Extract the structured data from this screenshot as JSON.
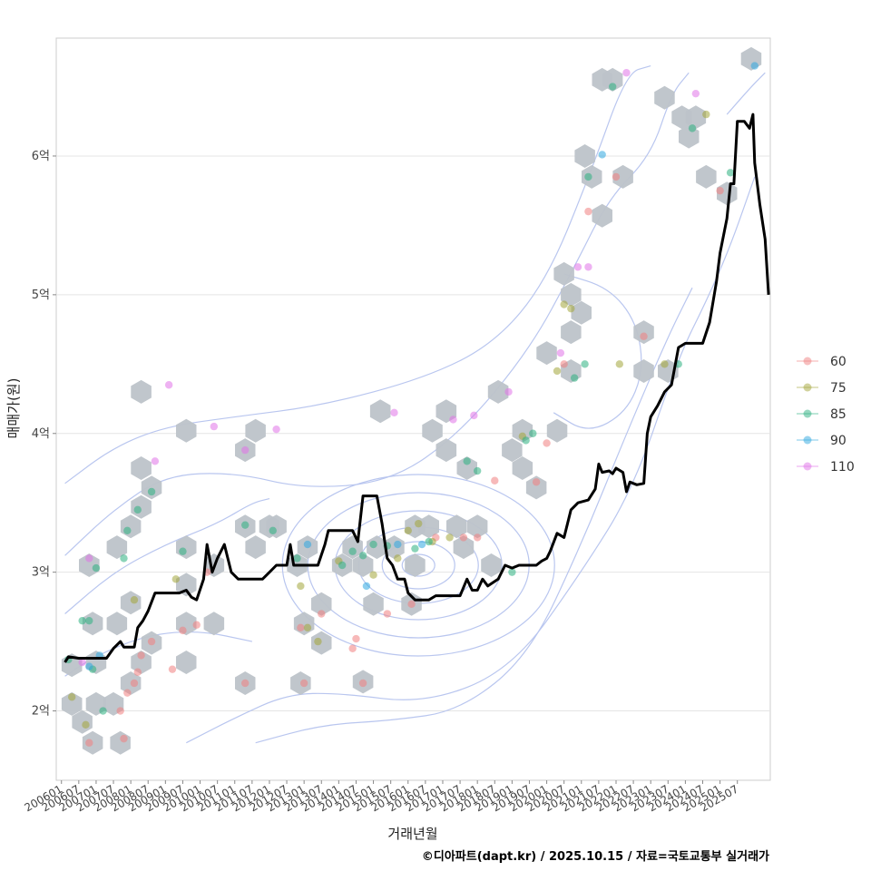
{
  "chart_data": {
    "type": "scatter",
    "xlabel": "거래년월",
    "ylabel": "매매가(원)",
    "credit": "©디아파트(dapt.kr) / 2025.10.15 / 자료=국토교통부 실거래가",
    "y_unit": "억",
    "ylim": [
      1.5,
      6.85
    ],
    "x_range": [
      2005.85,
      2026.45
    ],
    "y_ticks": [
      {
        "value": 2,
        "label": "2억"
      },
      {
        "value": 3,
        "label": "3억"
      },
      {
        "value": 4,
        "label": "4억"
      },
      {
        "value": 5,
        "label": "5억"
      },
      {
        "value": 6,
        "label": "6억"
      }
    ],
    "x_ticks": [
      "200601",
      "200607",
      "200701",
      "200707",
      "200801",
      "200807",
      "200901",
      "200907",
      "201001",
      "201007",
      "201101",
      "201107",
      "201201",
      "201207",
      "201301",
      "201307",
      "201401",
      "201407",
      "201501",
      "201507",
      "201601",
      "201607",
      "201701",
      "201707",
      "201801",
      "201807",
      "201901",
      "201907",
      "202001",
      "202007",
      "202101",
      "202107",
      "202201",
      "202207",
      "202301",
      "202307",
      "202401",
      "202407",
      "202501",
      "202507"
    ],
    "grid": true,
    "legend_position": "right",
    "legend": [
      {
        "name": "60",
        "color": "#f08080"
      },
      {
        "name": "75",
        "color": "#a3a53a"
      },
      {
        "name": "85",
        "color": "#2bb07f"
      },
      {
        "name": "90",
        "color": "#2fa8e0"
      },
      {
        "name": "110",
        "color": "#e072e8"
      }
    ],
    "series": [
      {
        "name": "60",
        "points": [
          [
            2006.8,
            1.77
          ],
          [
            2007.7,
            2.0
          ],
          [
            2007.8,
            1.8
          ],
          [
            2007.9,
            2.13
          ],
          [
            2008.1,
            2.2
          ],
          [
            2008.2,
            2.28
          ],
          [
            2008.3,
            2.4
          ],
          [
            2008.6,
            2.5
          ],
          [
            2009.2,
            2.3
          ],
          [
            2009.5,
            2.58
          ],
          [
            2009.9,
            2.62
          ],
          [
            2010.2,
            3.0
          ],
          [
            2011.3,
            2.2
          ],
          [
            2013.0,
            2.2
          ],
          [
            2012.9,
            2.6
          ],
          [
            2013.5,
            2.7
          ],
          [
            2014.4,
            2.45
          ],
          [
            2014.5,
            2.52
          ],
          [
            2014.7,
            2.2
          ],
          [
            2015.4,
            2.7
          ],
          [
            2016.1,
            2.77
          ],
          [
            2016.8,
            3.25
          ],
          [
            2017.6,
            3.25
          ],
          [
            2018.0,
            3.25
          ],
          [
            2018.5,
            3.66
          ],
          [
            2019.7,
            3.65
          ],
          [
            2020.0,
            3.93
          ],
          [
            2020.5,
            4.5
          ],
          [
            2021.2,
            5.6
          ],
          [
            2022.0,
            5.85
          ],
          [
            2022.8,
            4.7
          ],
          [
            2025.0,
            5.75
          ]
        ]
      },
      {
        "name": "75",
        "points": [
          [
            2006.3,
            2.1
          ],
          [
            2006.7,
            1.9
          ],
          [
            2008.1,
            2.8
          ],
          [
            2009.3,
            2.95
          ],
          [
            2012.9,
            2.9
          ],
          [
            2013.1,
            2.6
          ],
          [
            2013.4,
            2.5
          ],
          [
            2014.0,
            3.08
          ],
          [
            2015.0,
            2.98
          ],
          [
            2015.7,
            3.1
          ],
          [
            2016.0,
            3.3
          ],
          [
            2016.3,
            3.35
          ],
          [
            2016.7,
            3.22
          ],
          [
            2017.2,
            3.25
          ],
          [
            2019.3,
            3.98
          ],
          [
            2020.3,
            4.45
          ],
          [
            2020.5,
            4.93
          ],
          [
            2020.7,
            4.9
          ],
          [
            2022.1,
            4.5
          ],
          [
            2023.4,
            4.5
          ],
          [
            2024.6,
            6.3
          ]
        ]
      },
      {
        "name": "85",
        "points": [
          [
            2006.2,
            2.37
          ],
          [
            2006.6,
            2.65
          ],
          [
            2006.8,
            2.65
          ],
          [
            2006.9,
            2.3
          ],
          [
            2007.0,
            3.03
          ],
          [
            2007.2,
            2.0
          ],
          [
            2007.8,
            3.1
          ],
          [
            2007.9,
            3.3
          ],
          [
            2008.2,
            3.45
          ],
          [
            2008.6,
            3.58
          ],
          [
            2009.5,
            3.15
          ],
          [
            2011.3,
            3.34
          ],
          [
            2012.1,
            3.3
          ],
          [
            2012.8,
            3.1
          ],
          [
            2014.1,
            3.05
          ],
          [
            2014.4,
            3.15
          ],
          [
            2014.7,
            3.12
          ],
          [
            2015.0,
            3.2
          ],
          [
            2015.4,
            3.19
          ],
          [
            2016.2,
            3.17
          ],
          [
            2016.6,
            3.22
          ],
          [
            2017.7,
            3.8
          ],
          [
            2018.0,
            3.73
          ],
          [
            2019.0,
            3.0
          ],
          [
            2019.4,
            3.95
          ],
          [
            2019.6,
            4.0
          ],
          [
            2020.8,
            4.4
          ],
          [
            2021.1,
            4.5
          ],
          [
            2021.2,
            5.85
          ],
          [
            2021.9,
            6.5
          ],
          [
            2023.8,
            4.5
          ],
          [
            2024.2,
            6.2
          ],
          [
            2025.3,
            5.88
          ]
        ]
      },
      {
        "name": "90",
        "points": [
          [
            2006.8,
            2.32
          ],
          [
            2007.1,
            2.4
          ],
          [
            2013.1,
            3.2
          ],
          [
            2014.8,
            2.9
          ],
          [
            2015.7,
            3.2
          ],
          [
            2016.4,
            3.2
          ],
          [
            2021.6,
            6.01
          ],
          [
            2026.0,
            6.65
          ]
        ]
      },
      {
        "name": "110",
        "points": [
          [
            2006.6,
            2.35
          ],
          [
            2006.8,
            3.1
          ],
          [
            2008.7,
            3.8
          ],
          [
            2009.1,
            4.35
          ],
          [
            2010.4,
            4.05
          ],
          [
            2011.3,
            3.88
          ],
          [
            2012.2,
            4.03
          ],
          [
            2015.6,
            4.15
          ],
          [
            2017.3,
            4.1
          ],
          [
            2017.9,
            4.13
          ],
          [
            2018.9,
            4.3
          ],
          [
            2020.4,
            4.58
          ],
          [
            2020.9,
            5.2
          ],
          [
            2021.2,
            5.2
          ],
          [
            2022.3,
            6.6
          ],
          [
            2024.3,
            6.45
          ]
        ]
      }
    ],
    "hexbin_cells": [
      [
        2006.3,
        2.33
      ],
      [
        2006.3,
        2.05
      ],
      [
        2006.6,
        1.92
      ],
      [
        2006.9,
        1.77
      ],
      [
        2006.8,
        3.05
      ],
      [
        2006.9,
        2.63
      ],
      [
        2007.0,
        2.35
      ],
      [
        2007.0,
        2.05
      ],
      [
        2007.6,
        2.63
      ],
      [
        2007.5,
        2.05
      ],
      [
        2007.7,
        1.77
      ],
      [
        2007.6,
        3.18
      ],
      [
        2008.0,
        2.2
      ],
      [
        2008.0,
        2.78
      ],
      [
        2008.0,
        3.33
      ],
      [
        2008.3,
        2.35
      ],
      [
        2008.3,
        3.47
      ],
      [
        2008.3,
        3.75
      ],
      [
        2008.6,
        2.49
      ],
      [
        2008.6,
        3.61
      ],
      [
        2008.3,
        4.3
      ],
      [
        2009.6,
        2.91
      ],
      [
        2009.6,
        2.63
      ],
      [
        2009.6,
        2.35
      ],
      [
        2009.6,
        3.18
      ],
      [
        2009.6,
        4.02
      ],
      [
        2010.4,
        2.63
      ],
      [
        2010.4,
        3.05
      ],
      [
        2011.3,
        2.2
      ],
      [
        2011.3,
        3.33
      ],
      [
        2011.3,
        3.88
      ],
      [
        2011.6,
        3.18
      ],
      [
        2011.6,
        4.02
      ],
      [
        2012.0,
        3.33
      ],
      [
        2012.2,
        3.33
      ],
      [
        2012.8,
        3.05
      ],
      [
        2012.9,
        2.2
      ],
      [
        2013.0,
        2.63
      ],
      [
        2013.1,
        3.18
      ],
      [
        2013.5,
        2.77
      ],
      [
        2013.5,
        2.49
      ],
      [
        2014.1,
        3.05
      ],
      [
        2014.4,
        3.18
      ],
      [
        2014.7,
        2.21
      ],
      [
        2014.7,
        3.05
      ],
      [
        2015.0,
        2.77
      ],
      [
        2015.1,
        3.18
      ],
      [
        2015.2,
        4.16
      ],
      [
        2015.6,
        3.18
      ],
      [
        2016.1,
        2.77
      ],
      [
        2016.2,
        3.05
      ],
      [
        2016.2,
        3.33
      ],
      [
        2016.6,
        3.33
      ],
      [
        2016.7,
        4.02
      ],
      [
        2017.1,
        4.16
      ],
      [
        2017.1,
        3.88
      ],
      [
        2017.4,
        3.33
      ],
      [
        2017.6,
        3.18
      ],
      [
        2017.7,
        3.75
      ],
      [
        2018.0,
        3.33
      ],
      [
        2018.4,
        3.05
      ],
      [
        2018.6,
        4.3
      ],
      [
        2019.0,
        3.88
      ],
      [
        2019.3,
        4.02
      ],
      [
        2019.3,
        3.75
      ],
      [
        2019.7,
        3.61
      ],
      [
        2020.0,
        4.58
      ],
      [
        2020.3,
        4.02
      ],
      [
        2020.5,
        5.15
      ],
      [
        2020.7,
        4.73
      ],
      [
        2020.7,
        5.0
      ],
      [
        2020.7,
        4.45
      ],
      [
        2021.0,
        4.87
      ],
      [
        2021.1,
        6.0
      ],
      [
        2021.3,
        5.85
      ],
      [
        2021.6,
        5.57
      ],
      [
        2021.6,
        6.55
      ],
      [
        2021.9,
        6.55
      ],
      [
        2022.2,
        5.85
      ],
      [
        2022.8,
        4.45
      ],
      [
        2022.8,
        4.73
      ],
      [
        2023.4,
        6.42
      ],
      [
        2023.5,
        4.45
      ],
      [
        2023.9,
        6.28
      ],
      [
        2024.1,
        6.14
      ],
      [
        2024.3,
        6.28
      ],
      [
        2024.6,
        5.85
      ],
      [
        2025.2,
        5.73
      ],
      [
        2025.9,
        6.7
      ]
    ],
    "median_line": [
      [
        2006.1,
        2.35
      ],
      [
        2006.2,
        2.39
      ],
      [
        2006.5,
        2.38
      ],
      [
        2007.3,
        2.38
      ],
      [
        2007.5,
        2.45
      ],
      [
        2007.7,
        2.5
      ],
      [
        2007.8,
        2.46
      ],
      [
        2008.1,
        2.46
      ],
      [
        2008.2,
        2.6
      ],
      [
        2008.35,
        2.65
      ],
      [
        2008.5,
        2.72
      ],
      [
        2008.7,
        2.85
      ],
      [
        2009.4,
        2.85
      ],
      [
        2009.6,
        2.87
      ],
      [
        2009.75,
        2.82
      ],
      [
        2009.9,
        2.8
      ],
      [
        2010.1,
        2.95
      ],
      [
        2010.2,
        3.2
      ],
      [
        2010.35,
        3.0
      ],
      [
        2010.5,
        3.1
      ],
      [
        2010.7,
        3.2
      ],
      [
        2010.9,
        3.0
      ],
      [
        2011.1,
        2.95
      ],
      [
        2011.3,
        2.95
      ],
      [
        2011.8,
        2.95
      ],
      [
        2012.0,
        3.0
      ],
      [
        2012.2,
        3.05
      ],
      [
        2012.5,
        3.05
      ],
      [
        2012.6,
        3.2
      ],
      [
        2012.7,
        3.05
      ],
      [
        2013.4,
        3.05
      ],
      [
        2013.6,
        3.2
      ],
      [
        2013.7,
        3.3
      ],
      [
        2013.9,
        3.3
      ],
      [
        2014.4,
        3.3
      ],
      [
        2014.55,
        3.22
      ],
      [
        2014.7,
        3.55
      ],
      [
        2015.1,
        3.55
      ],
      [
        2015.25,
        3.35
      ],
      [
        2015.4,
        3.1
      ],
      [
        2015.55,
        3.05
      ],
      [
        2015.7,
        2.95
      ],
      [
        2015.9,
        2.95
      ],
      [
        2016.0,
        2.85
      ],
      [
        2016.2,
        2.8
      ],
      [
        2016.6,
        2.8
      ],
      [
        2016.8,
        2.83
      ],
      [
        2017.5,
        2.83
      ],
      [
        2017.7,
        2.95
      ],
      [
        2017.85,
        2.87
      ],
      [
        2018.0,
        2.87
      ],
      [
        2018.15,
        2.95
      ],
      [
        2018.3,
        2.9
      ],
      [
        2018.6,
        2.95
      ],
      [
        2018.8,
        3.05
      ],
      [
        2019.0,
        3.03
      ],
      [
        2019.2,
        3.05
      ],
      [
        2019.7,
        3.05
      ],
      [
        2019.85,
        3.08
      ],
      [
        2020.0,
        3.1
      ],
      [
        2020.1,
        3.15
      ],
      [
        2020.3,
        3.28
      ],
      [
        2020.5,
        3.25
      ],
      [
        2020.6,
        3.35
      ],
      [
        2020.7,
        3.45
      ],
      [
        2020.9,
        3.5
      ],
      [
        2021.2,
        3.52
      ],
      [
        2021.4,
        3.6
      ],
      [
        2021.5,
        3.78
      ],
      [
        2021.6,
        3.72
      ],
      [
        2021.8,
        3.73
      ],
      [
        2021.9,
        3.71
      ],
      [
        2022.0,
        3.75
      ],
      [
        2022.2,
        3.72
      ],
      [
        2022.3,
        3.58
      ],
      [
        2022.4,
        3.65
      ],
      [
        2022.6,
        3.63
      ],
      [
        2022.8,
        3.64
      ],
      [
        2022.9,
        4.0
      ],
      [
        2023.0,
        4.12
      ],
      [
        2023.2,
        4.2
      ],
      [
        2023.4,
        4.3
      ],
      [
        2023.6,
        4.35
      ],
      [
        2023.8,
        4.62
      ],
      [
        2024.0,
        4.65
      ],
      [
        2024.5,
        4.65
      ],
      [
        2024.7,
        4.8
      ],
      [
        2024.9,
        5.1
      ],
      [
        2025.0,
        5.3
      ],
      [
        2025.2,
        5.55
      ],
      [
        2025.3,
        5.8
      ],
      [
        2025.4,
        5.8
      ],
      [
        2025.5,
        6.25
      ],
      [
        2025.7,
        6.25
      ],
      [
        2025.85,
        6.2
      ],
      [
        2025.95,
        6.3
      ],
      [
        2026.0,
        5.95
      ],
      [
        2026.15,
        5.65
      ],
      [
        2026.3,
        5.4
      ],
      [
        2026.4,
        5.0
      ]
    ]
  }
}
